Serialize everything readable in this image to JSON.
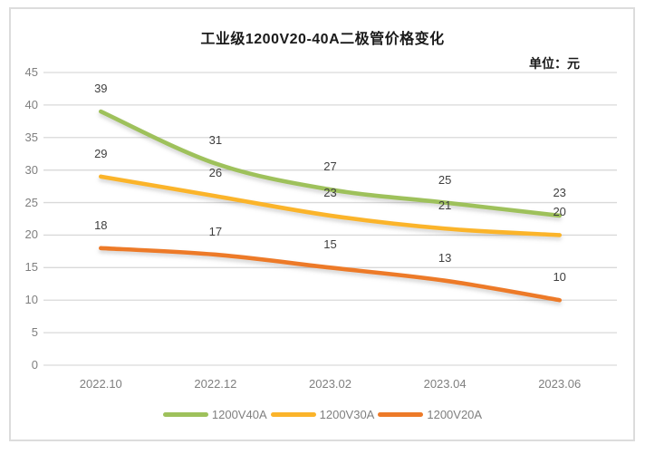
{
  "window": {
    "background": "#ffffff",
    "border_color": "#dcdcdc"
  },
  "chart_data": {
    "type": "line",
    "title": "工业级1200V20-40A二极管价格变化",
    "unit_label": "单位：元",
    "categories": [
      "2022.10",
      "2022.12",
      "2023.02",
      "2023.04",
      "2023.06"
    ],
    "series": [
      {
        "name": "1200V40A",
        "color": "#9EC15B",
        "values": [
          39,
          31,
          27,
          25,
          23
        ]
      },
      {
        "name": "1200V30A",
        "color": "#FBB42A",
        "values": [
          29,
          26,
          23,
          21,
          20
        ]
      },
      {
        "name": "1200V20A",
        "color": "#ED7A28",
        "values": [
          18,
          17,
          15,
          13,
          10
        ]
      }
    ],
    "ylim": [
      0,
      45
    ],
    "yticks": [
      0,
      5,
      10,
      15,
      20,
      25,
      30,
      35,
      40,
      45
    ],
    "grid": true,
    "smoothed_lines": true,
    "data_labels": true,
    "legend_position": "bottom",
    "colors": {
      "grid": "#d9d9d9",
      "axis_text": "#7f7f7f",
      "data_label_text": "#3f3f3f",
      "title_text": "#1a1a1a"
    }
  }
}
